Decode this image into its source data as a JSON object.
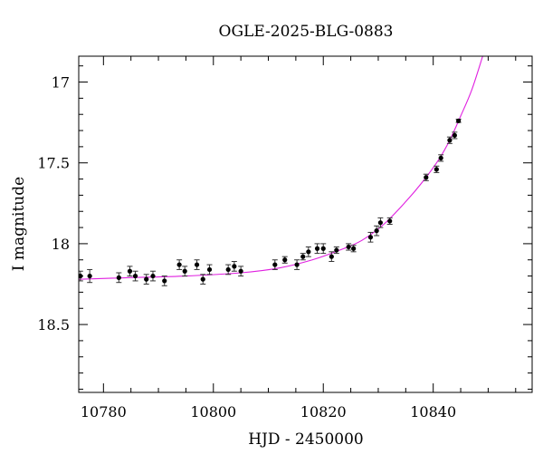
{
  "chart_data": {
    "type": "scatter",
    "title": "OGLE-2025-BLG-0883",
    "xlabel": "HJD - 2450000",
    "ylabel": "I magnitude",
    "xlim": [
      10775.5,
      10858
    ],
    "ylim": [
      18.92,
      16.84
    ],
    "y_inverted": true,
    "x_ticks": [
      10780,
      10800,
      10820,
      10840
    ],
    "x_tick_labels": [
      "10780",
      "10800",
      "10820",
      "10840"
    ],
    "y_ticks": [
      17,
      17.5,
      18,
      18.5
    ],
    "y_tick_labels": [
      "17",
      "17.5",
      "18",
      "18.5"
    ],
    "grid": false,
    "colors": {
      "points": "#000000",
      "model": "#e020e0",
      "axes": "#000000"
    },
    "series": [
      {
        "kind": "points_with_error_bars",
        "points": [
          {
            "x": 10775.8,
            "y": 18.2,
            "err": 0.03
          },
          {
            "x": 10777.5,
            "y": 18.2,
            "err": 0.04
          },
          {
            "x": 10782.8,
            "y": 18.21,
            "err": 0.03
          },
          {
            "x": 10784.8,
            "y": 18.17,
            "err": 0.03
          },
          {
            "x": 10785.8,
            "y": 18.2,
            "err": 0.03
          },
          {
            "x": 10787.8,
            "y": 18.22,
            "err": 0.03
          },
          {
            "x": 10789.0,
            "y": 18.2,
            "err": 0.03
          },
          {
            "x": 10791.1,
            "y": 18.23,
            "err": 0.03
          },
          {
            "x": 10793.8,
            "y": 18.13,
            "err": 0.03
          },
          {
            "x": 10794.8,
            "y": 18.17,
            "err": 0.03
          },
          {
            "x": 10797.0,
            "y": 18.13,
            "err": 0.03
          },
          {
            "x": 10798.1,
            "y": 18.22,
            "err": 0.03
          },
          {
            "x": 10799.3,
            "y": 18.16,
            "err": 0.03
          },
          {
            "x": 10802.7,
            "y": 18.16,
            "err": 0.03
          },
          {
            "x": 10803.8,
            "y": 18.14,
            "err": 0.03
          },
          {
            "x": 10805.0,
            "y": 18.17,
            "err": 0.03
          },
          {
            "x": 10811.2,
            "y": 18.13,
            "err": 0.03
          },
          {
            "x": 10813.0,
            "y": 18.1,
            "err": 0.02
          },
          {
            "x": 10815.2,
            "y": 18.13,
            "err": 0.03
          },
          {
            "x": 10816.3,
            "y": 18.08,
            "err": 0.02
          },
          {
            "x": 10817.3,
            "y": 18.05,
            "err": 0.03
          },
          {
            "x": 10818.9,
            "y": 18.03,
            "err": 0.03
          },
          {
            "x": 10820.0,
            "y": 18.03,
            "err": 0.03
          },
          {
            "x": 10821.5,
            "y": 18.08,
            "err": 0.03
          },
          {
            "x": 10822.4,
            "y": 18.04,
            "err": 0.02
          },
          {
            "x": 10824.6,
            "y": 18.02,
            "err": 0.02
          },
          {
            "x": 10825.5,
            "y": 18.03,
            "err": 0.02
          },
          {
            "x": 10828.6,
            "y": 17.96,
            "err": 0.03
          },
          {
            "x": 10829.7,
            "y": 17.92,
            "err": 0.03
          },
          {
            "x": 10830.4,
            "y": 17.87,
            "err": 0.03
          },
          {
            "x": 10832.1,
            "y": 17.86,
            "err": 0.02
          },
          {
            "x": 10838.7,
            "y": 17.59,
            "err": 0.02
          },
          {
            "x": 10840.6,
            "y": 17.54,
            "err": 0.02
          },
          {
            "x": 10841.4,
            "y": 17.47,
            "err": 0.02
          },
          {
            "x": 10843.0,
            "y": 17.36,
            "err": 0.02
          },
          {
            "x": 10843.9,
            "y": 17.33,
            "err": 0.02
          },
          {
            "x": 10844.6,
            "y": 17.24,
            "err": 0.01
          }
        ]
      },
      {
        "kind": "model_curve",
        "points": [
          {
            "x": 10775.5,
            "y": 18.22
          },
          {
            "x": 10785,
            "y": 18.21
          },
          {
            "x": 10795,
            "y": 18.2
          },
          {
            "x": 10805,
            "y": 18.18
          },
          {
            "x": 10812,
            "y": 18.15
          },
          {
            "x": 10818,
            "y": 18.1
          },
          {
            "x": 10823,
            "y": 18.04
          },
          {
            "x": 10827,
            "y": 17.98
          },
          {
            "x": 10831,
            "y": 17.88
          },
          {
            "x": 10835,
            "y": 17.74
          },
          {
            "x": 10838,
            "y": 17.62
          },
          {
            "x": 10841,
            "y": 17.48
          },
          {
            "x": 10843,
            "y": 17.36
          },
          {
            "x": 10845,
            "y": 17.21
          },
          {
            "x": 10847,
            "y": 17.05
          },
          {
            "x": 10849,
            "y": 16.84
          }
        ]
      }
    ]
  }
}
